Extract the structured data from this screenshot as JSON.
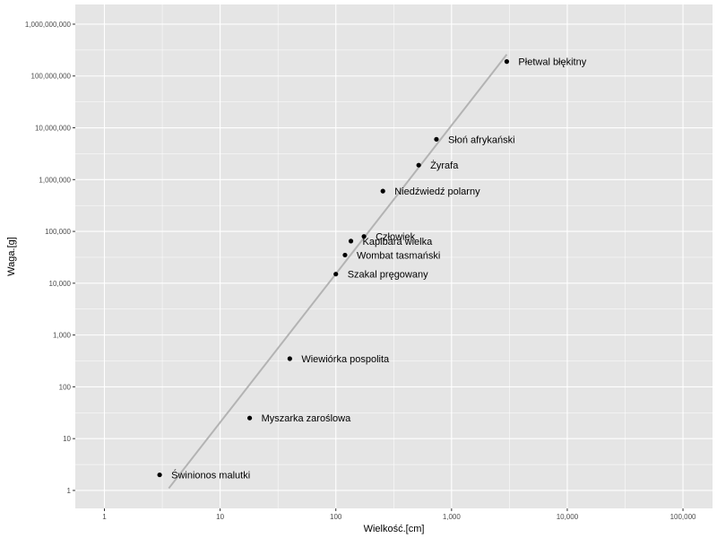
{
  "chart_data": {
    "type": "scatter",
    "title": "",
    "xlabel": "Wielkość.[cm]",
    "ylabel": "Waga.[g]",
    "x_scale": "log10",
    "y_scale": "log10",
    "xlim": [
      0.56,
      180000
    ],
    "ylim": [
      0.45,
      2400000000
    ],
    "grid": true,
    "legend": "none",
    "x_ticks": [
      {
        "value": 1,
        "label": "1"
      },
      {
        "value": 10,
        "label": "10"
      },
      {
        "value": 100,
        "label": "100"
      },
      {
        "value": 1000,
        "label": "1,000"
      },
      {
        "value": 10000,
        "label": "10,000"
      },
      {
        "value": 100000,
        "label": "100,000"
      }
    ],
    "y_ticks": [
      {
        "value": 1,
        "label": "1"
      },
      {
        "value": 10,
        "label": "10"
      },
      {
        "value": 100,
        "label": "100"
      },
      {
        "value": 1000,
        "label": "1,000"
      },
      {
        "value": 10000,
        "label": "10,000"
      },
      {
        "value": 100000,
        "label": "100,000"
      },
      {
        "value": 1000000,
        "label": "1,000,000"
      },
      {
        "value": 10000000,
        "label": "10,000,000"
      },
      {
        "value": 100000000,
        "label": "100,000,000"
      },
      {
        "value": 1000000000,
        "label": "1,000,000,000"
      }
    ],
    "points": [
      {
        "label": "Świnionos malutki",
        "x": 3,
        "y": 2
      },
      {
        "label": "Myszarka zaroślowa",
        "x": 18,
        "y": 25
      },
      {
        "label": "Wiewiórka pospolita",
        "x": 40,
        "y": 350
      },
      {
        "label": "Szakal pręgowany",
        "x": 100,
        "y": 15000
      },
      {
        "label": "Wombat tasmański",
        "x": 120,
        "y": 35000
      },
      {
        "label": "Kapibara wielka",
        "x": 135,
        "y": 65000
      },
      {
        "label": "Człowiek",
        "x": 175,
        "y": 80000
      },
      {
        "label": "Niedźwiedź polarny",
        "x": 255,
        "y": 600000
      },
      {
        "label": "Żyrafa",
        "x": 520,
        "y": 1900000
      },
      {
        "label": "Słoń afrykański",
        "x": 740,
        "y": 6000000
      },
      {
        "label": "Płetwal błękitny",
        "x": 3000,
        "y": 190000000
      }
    ],
    "trend_line": {
      "x": [
        3.6,
        3000
      ],
      "y": [
        1.1,
        260000000
      ]
    },
    "colors": {
      "panel_background": "#e5e5e5",
      "grid": "#ffffff",
      "points": "#000000",
      "trend_line": "#b3b3b3",
      "tick_text": "#4d4d4d"
    }
  }
}
